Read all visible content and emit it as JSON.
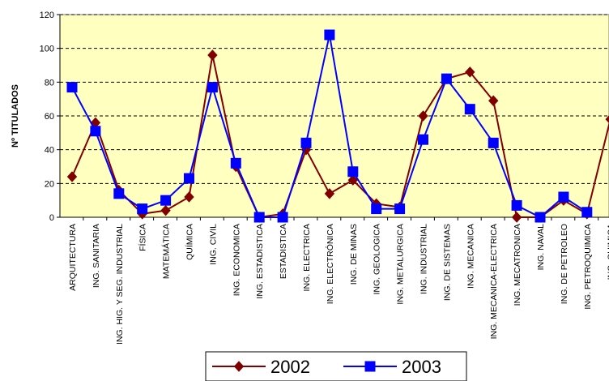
{
  "chart_data": {
    "type": "line",
    "ylabel": "Nº TITULADOS",
    "ylim": [
      0,
      120
    ],
    "yticks": [
      0,
      20,
      40,
      60,
      80,
      100,
      120
    ],
    "grid": "horizontal-dashed",
    "legend_position": "bottom-center",
    "categories": [
      "ARQUITECTURA",
      "ING. SANITARIA",
      "ING. HIG. Y SEG. INDUSTRIAL",
      "FÍSICA",
      "MATEMÁTICA",
      "QUÍMICA",
      "ING. CIVIL",
      "ING. ECONOMICA",
      "ING. ESTADISTICA",
      "ESTADISTICA",
      "ING. ELECTRICA",
      "ING. ELECTRÓNICA",
      "ING. DE MINAS",
      "ING. GEOLOGICA",
      "ING. METALURGICA",
      "ING. INDUSTRIAL",
      "ING. DE SISTEMAS",
      "ING. MECANICA",
      "ING. MECANICA-ELECTRICA",
      "ING. MECATRONICA",
      "ING. NAVAL",
      "ING. DE PETROLEO",
      "ING. PETROQUIMICA",
      "ING. QUIMICA"
    ],
    "series": [
      {
        "name": "2002",
        "color": "#800000",
        "marker": "diamond",
        "values": [
          24,
          56,
          16,
          2,
          4,
          12,
          96,
          30,
          0,
          2,
          40,
          14,
          22,
          8,
          6,
          60,
          82,
          86,
          69,
          0,
          0,
          10,
          2,
          58
        ]
      },
      {
        "name": "2003",
        "color": "#0000ff",
        "marker": "square",
        "values": [
          77,
          51,
          14,
          5,
          10,
          23,
          77,
          32,
          0,
          0,
          44,
          108,
          27,
          5,
          5,
          46,
          82,
          64,
          44,
          7,
          0,
          12,
          3,
          null
        ]
      }
    ]
  }
}
